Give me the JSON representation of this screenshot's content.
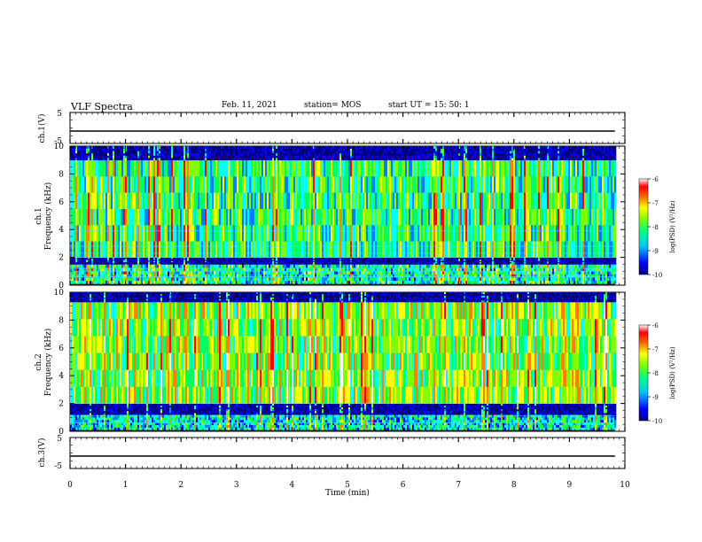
{
  "header": {
    "title": "VLF Spectra",
    "date": "Feb. 11, 2021",
    "station": "station= MOS",
    "start_ut": "start UT =  15: 50: 1"
  },
  "chart_data": [
    {
      "type": "line",
      "panel": "ch1-waveform",
      "ylabel": "ch.1(V)",
      "ylim": [
        -5,
        5
      ],
      "yticks": [
        "5",
        "-5"
      ],
      "series": [
        {
          "name": "ch.1",
          "x": [
            0,
            9.82
          ],
          "y": [
            -1,
            -1
          ]
        }
      ]
    },
    {
      "type": "heatmap",
      "panel": "ch1-spectrogram",
      "title": "ch.1",
      "ylabel": "Frequency (kHz)",
      "ylim": [
        0,
        10
      ],
      "yticks": [
        "0",
        "2",
        "4",
        "6",
        "8",
        "10"
      ],
      "xlim": [
        0,
        10
      ],
      "data_end_min": 9.82,
      "colorbar": {
        "label": "log(PSD) (V²/Hz)",
        "range": [
          -10,
          -6
        ],
        "ticks": [
          "-6",
          "-7",
          "-8",
          "-9",
          "-10"
        ]
      },
      "bands": [
        {
          "from_khz": 0.1,
          "to_khz": 1.5,
          "level": -8.6
        },
        {
          "from_khz": 1.5,
          "to_khz": 2.0,
          "level": -10
        },
        {
          "from_khz": 2.0,
          "to_khz": 9.0,
          "level": -8.4
        },
        {
          "from_khz": 9.0,
          "to_khz": 10,
          "level": -10
        }
      ],
      "lines_khz": [
        0.6,
        1.0,
        1.2,
        2.0,
        2.3,
        2.8,
        3.9
      ]
    },
    {
      "type": "heatmap",
      "panel": "ch2-spectrogram",
      "title": "ch.2",
      "ylabel": "Frequency (kHz)",
      "ylim": [
        0,
        10
      ],
      "yticks": [
        "0",
        "2",
        "4",
        "6",
        "8",
        "10"
      ],
      "xlim": [
        0,
        10
      ],
      "data_end_min": 9.82,
      "colorbar": {
        "label": "log(PSD) (V²/Hz)",
        "range": [
          -10,
          -6
        ],
        "ticks": [
          "-6",
          "-7",
          "-8",
          "-9",
          "-10"
        ]
      },
      "bands": [
        {
          "from_khz": 0.1,
          "to_khz": 1.2,
          "level": -8.8
        },
        {
          "from_khz": 1.2,
          "to_khz": 2.0,
          "level": -10
        },
        {
          "from_khz": 2.0,
          "to_khz": 9.3,
          "level": -8.0
        },
        {
          "from_khz": 9.3,
          "to_khz": 10,
          "level": -10
        }
      ],
      "lines_khz": [
        0.6,
        1.1,
        2.0
      ]
    },
    {
      "type": "line",
      "panel": "ch3-waveform",
      "ylabel": "ch.3(V)",
      "ylim": [
        -5,
        5
      ],
      "yticks": [
        "5",
        "-5"
      ],
      "series": [
        {
          "name": "ch.3",
          "x": [
            0,
            9.82
          ],
          "y": [
            -1,
            -1
          ]
        }
      ]
    }
  ],
  "xaxis": {
    "label": "Time (min)",
    "range": [
      0,
      10
    ],
    "ticks": [
      "0",
      "1",
      "2",
      "3",
      "4",
      "5",
      "6",
      "7",
      "8",
      "9",
      "10"
    ]
  },
  "colors": {
    "colormap": [
      "#000080",
      "#0000ff",
      "#0080ff",
      "#00ffff",
      "#00ff60",
      "#80ff00",
      "#ffff00",
      "#ff8000",
      "#ff0000",
      "#ffffff"
    ],
    "background_black": "#000000",
    "axis": "#000000"
  }
}
